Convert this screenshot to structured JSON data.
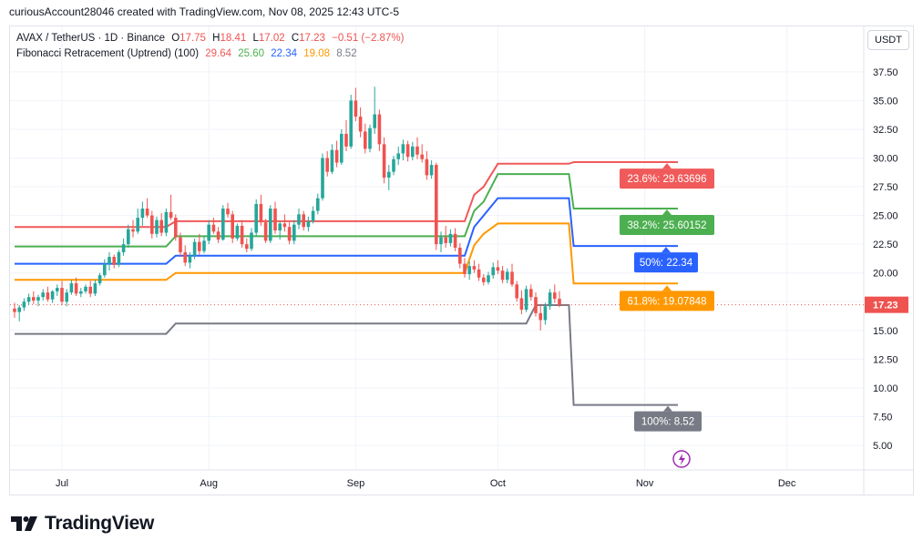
{
  "header": {
    "caption": "curiousAccount28046 created with TradingView.com, Nov 08, 2025 12:43 UTC-5"
  },
  "legend": {
    "symbol": "AVAX / TetherUS · 1D · Binance",
    "o_label": "O",
    "o_value": "17.75",
    "h_label": "H",
    "h_value": "18.41",
    "l_label": "L",
    "l_value": "17.02",
    "c_label": "C",
    "c_value": "17.23",
    "change": "−0.51 (−2.87%)",
    "indicator": "Fibonacci Retracement (Uptrend) (100)",
    "fib_values": [
      "29.64",
      "25.60",
      "22.34",
      "19.08",
      "8.52"
    ]
  },
  "currency": "USDT",
  "brand": {
    "name": "TradingView"
  },
  "colors": {
    "up": "#26a69a",
    "down": "#ef5350",
    "fib_236": "#f05a5a",
    "fib_382": "#4caf50",
    "fib_50": "#2962ff",
    "fib_618": "#ff9800",
    "fib_100": "#787b86",
    "grid": "#f0f3fa",
    "price_line": "#ef5350"
  },
  "chart_data": {
    "type": "candlestick",
    "symbol": "AVAX / TetherUS",
    "interval": "1D",
    "exchange": "Binance",
    "ylim": [
      2.5,
      40
    ],
    "y_ticks": [
      5,
      7.5,
      10,
      12.5,
      15,
      17.5,
      20,
      22.5,
      25,
      27.5,
      30,
      32.5,
      35,
      37.5
    ],
    "y_tick_labels": [
      "5.00",
      "7.50",
      "10.00",
      "12.50",
      "15.00",
      "17.50",
      "20.00",
      "22.50",
      "25.00",
      "27.50",
      "30.00",
      "32.50",
      "35.00",
      "37.50"
    ],
    "x_ticks": [
      {
        "label": "Jul",
        "day": 0
      },
      {
        "label": "Aug",
        "day": 31
      },
      {
        "label": "Sep",
        "day": 62
      },
      {
        "label": "Oct",
        "day": 92
      },
      {
        "label": "Nov",
        "day": 123
      },
      {
        "label": "Dec",
        "day": 153
      }
    ],
    "last_price": 17.23,
    "last_price_label": "17.23",
    "candles": [
      [
        16.9,
        17.4,
        16.1,
        16.6
      ],
      [
        16.6,
        17.2,
        15.8,
        17.0
      ],
      [
        17.0,
        17.8,
        16.7,
        17.5
      ],
      [
        17.5,
        18.2,
        17.2,
        17.9
      ],
      [
        17.9,
        18.4,
        17.3,
        17.6
      ],
      [
        17.6,
        18.1,
        17.1,
        17.9
      ],
      [
        17.9,
        18.6,
        17.6,
        18.3
      ],
      [
        18.3,
        18.8,
        17.5,
        17.7
      ],
      [
        17.7,
        18.5,
        17.4,
        18.4
      ],
      [
        18.4,
        19.0,
        18.0,
        18.7
      ],
      [
        18.7,
        19.3,
        17.2,
        17.5
      ],
      [
        17.5,
        18.6,
        17.1,
        18.3
      ],
      [
        18.3,
        19.4,
        18.1,
        19.1
      ],
      [
        19.1,
        19.6,
        18.0,
        18.2
      ],
      [
        18.2,
        18.7,
        17.9,
        18.4
      ],
      [
        18.4,
        19.0,
        18.2,
        18.8
      ],
      [
        18.8,
        19.3,
        17.9,
        18.2
      ],
      [
        18.2,
        19.4,
        18.0,
        19.1
      ],
      [
        19.1,
        20.0,
        18.9,
        19.8
      ],
      [
        19.8,
        21.2,
        19.6,
        20.8
      ],
      [
        20.8,
        21.8,
        20.2,
        21.4
      ],
      [
        21.4,
        21.6,
        20.4,
        20.7
      ],
      [
        20.7,
        22.0,
        20.5,
        21.8
      ],
      [
        21.8,
        23.0,
        21.5,
        22.5
      ],
      [
        22.5,
        24.2,
        22.2,
        23.8
      ],
      [
        23.8,
        24.6,
        23.1,
        23.6
      ],
      [
        23.6,
        25.6,
        23.4,
        24.8
      ],
      [
        24.8,
        26.2,
        24.1,
        25.6
      ],
      [
        25.6,
        26.5,
        24.8,
        25.0
      ],
      [
        25.0,
        25.4,
        23.0,
        23.4
      ],
      [
        23.4,
        24.9,
        23.1,
        24.6
      ],
      [
        24.6,
        25.2,
        23.2,
        23.5
      ],
      [
        23.5,
        25.6,
        23.2,
        25.3
      ],
      [
        25.3,
        26.8,
        24.6,
        24.8
      ],
      [
        24.8,
        25.1,
        22.8,
        23.1
      ],
      [
        23.1,
        23.5,
        21.4,
        21.8
      ],
      [
        21.8,
        22.4,
        20.6,
        20.9
      ],
      [
        20.9,
        21.8,
        20.4,
        21.5
      ],
      [
        21.5,
        23.0,
        21.2,
        22.7
      ],
      [
        22.7,
        23.4,
        21.6,
        21.9
      ],
      [
        21.9,
        23.2,
        21.7,
        22.8
      ],
      [
        22.8,
        24.6,
        22.5,
        24.2
      ],
      [
        24.2,
        24.8,
        23.4,
        23.6
      ],
      [
        23.6,
        24.0,
        22.6,
        22.9
      ],
      [
        22.9,
        25.9,
        22.8,
        25.6
      ],
      [
        25.6,
        26.1,
        24.8,
        25.1
      ],
      [
        25.1,
        25.4,
        22.6,
        23.0
      ],
      [
        23.0,
        24.3,
        22.8,
        24.1
      ],
      [
        24.1,
        24.6,
        22.2,
        22.5
      ],
      [
        22.5,
        23.0,
        21.8,
        22.1
      ],
      [
        22.1,
        23.9,
        21.9,
        23.5
      ],
      [
        23.5,
        26.4,
        23.2,
        26.0
      ],
      [
        26.0,
        26.8,
        24.1,
        24.4
      ],
      [
        24.4,
        24.7,
        22.6,
        22.8
      ],
      [
        22.8,
        25.9,
        22.6,
        25.6
      ],
      [
        25.6,
        26.2,
        23.4,
        23.7
      ],
      [
        23.7,
        24.5,
        22.9,
        24.3
      ],
      [
        24.3,
        25.1,
        23.6,
        24.0
      ],
      [
        24.0,
        24.4,
        22.5,
        22.8
      ],
      [
        22.8,
        24.6,
        22.5,
        24.2
      ],
      [
        24.2,
        25.6,
        23.8,
        25.1
      ],
      [
        25.1,
        25.4,
        23.7,
        24.0
      ],
      [
        24.0,
        24.9,
        23.6,
        24.5
      ],
      [
        24.5,
        25.8,
        24.3,
        25.4
      ],
      [
        25.4,
        26.9,
        25.1,
        26.5
      ],
      [
        26.5,
        30.4,
        26.3,
        30.0
      ],
      [
        30.0,
        30.6,
        28.4,
        28.8
      ],
      [
        28.8,
        31.2,
        28.6,
        30.7
      ],
      [
        30.7,
        31.5,
        29.2,
        29.6
      ],
      [
        29.6,
        32.5,
        29.4,
        32.1
      ],
      [
        32.1,
        33.3,
        30.6,
        31.0
      ],
      [
        31.0,
        35.5,
        30.8,
        35.0
      ],
      [
        35.0,
        36.1,
        33.2,
        33.6
      ],
      [
        33.6,
        34.4,
        31.8,
        32.3
      ],
      [
        32.3,
        33.0,
        30.4,
        30.8
      ],
      [
        30.8,
        32.9,
        30.5,
        32.6
      ],
      [
        32.6,
        36.2,
        32.1,
        33.8
      ],
      [
        33.8,
        34.2,
        30.6,
        31.2
      ],
      [
        31.2,
        31.8,
        27.8,
        28.3
      ],
      [
        28.3,
        29.4,
        27.2,
        28.8
      ],
      [
        28.8,
        30.2,
        28.5,
        29.9
      ],
      [
        29.9,
        31.0,
        29.4,
        30.4
      ],
      [
        30.4,
        31.6,
        29.8,
        31.2
      ],
      [
        31.2,
        31.5,
        29.7,
        30.1
      ],
      [
        30.1,
        31.4,
        29.8,
        31.0
      ],
      [
        31.0,
        31.8,
        29.9,
        30.3
      ],
      [
        30.3,
        31.2,
        29.6,
        29.9
      ],
      [
        29.9,
        30.6,
        28.1,
        28.5
      ],
      [
        28.5,
        29.8,
        28.2,
        29.4
      ],
      [
        29.4,
        29.6,
        22.0,
        22.5
      ],
      [
        22.5,
        23.6,
        21.8,
        23.1
      ],
      [
        23.1,
        24.1,
        22.2,
        22.6
      ],
      [
        22.6,
        23.8,
        22.3,
        23.4
      ],
      [
        23.4,
        23.9,
        21.9,
        22.2
      ],
      [
        22.2,
        22.6,
        20.4,
        20.8
      ],
      [
        20.8,
        21.3,
        19.6,
        19.9
      ],
      [
        19.9,
        21.0,
        19.4,
        20.6
      ],
      [
        20.6,
        21.1,
        20.0,
        20.3
      ],
      [
        20.3,
        20.8,
        19.3,
        19.6
      ],
      [
        19.6,
        19.9,
        18.9,
        19.2
      ],
      [
        19.2,
        20.1,
        19.0,
        19.8
      ],
      [
        19.8,
        20.9,
        19.5,
        20.5
      ],
      [
        20.5,
        21.1,
        19.9,
        20.2
      ],
      [
        20.2,
        20.6,
        19.1,
        19.4
      ],
      [
        19.4,
        20.4,
        19.1,
        20.1
      ],
      [
        20.1,
        20.8,
        18.8,
        19.0
      ],
      [
        19.0,
        19.3,
        17.5,
        17.8
      ],
      [
        17.8,
        18.5,
        16.4,
        16.8
      ],
      [
        16.8,
        18.9,
        16.6,
        18.6
      ],
      [
        18.6,
        19.0,
        17.6,
        17.9
      ],
      [
        17.9,
        18.3,
        16.2,
        16.5
      ],
      [
        16.5,
        17.2,
        15.0,
        15.9
      ],
      [
        15.9,
        17.4,
        15.5,
        17.1
      ],
      [
        17.1,
        18.6,
        16.8,
        18.3
      ],
      [
        18.3,
        19.0,
        17.4,
        17.75
      ],
      [
        17.75,
        18.41,
        17.02,
        17.23
      ]
    ],
    "candles_start_day": -10,
    "fib_levels": [
      {
        "name": "23.6%",
        "label": "23.6%: 29.63696",
        "final": 29.63696,
        "steps": [
          [
            -10,
            24.0
          ],
          [
            22,
            24.0
          ],
          [
            24,
            24.5
          ],
          [
            85,
            24.5
          ],
          [
            87,
            26.8
          ],
          [
            89,
            27.5
          ],
          [
            92,
            29.5
          ],
          [
            107,
            29.5
          ],
          [
            108,
            29.64
          ],
          [
            130,
            29.64
          ]
        ]
      },
      {
        "name": "38.2%",
        "label": "38.2%: 25.60152",
        "final": 25.60152,
        "steps": [
          [
            -10,
            22.3
          ],
          [
            22,
            22.3
          ],
          [
            24,
            23.2
          ],
          [
            85,
            23.2
          ],
          [
            87,
            25.4
          ],
          [
            89,
            26.2
          ],
          [
            92,
            28.6
          ],
          [
            107,
            28.6
          ],
          [
            108,
            25.6
          ],
          [
            130,
            25.6
          ]
        ]
      },
      {
        "name": "50%",
        "label": "50%: 22.34",
        "final": 22.34,
        "steps": [
          [
            -10,
            20.8
          ],
          [
            22,
            20.8
          ],
          [
            24,
            21.5
          ],
          [
            85,
            21.5
          ],
          [
            87,
            24.0
          ],
          [
            89,
            25.0
          ],
          [
            92,
            26.5
          ],
          [
            107,
            26.5
          ],
          [
            108,
            22.34
          ],
          [
            130,
            22.34
          ]
        ]
      },
      {
        "name": "61.8%",
        "label": "61.8%: 19.07848",
        "final": 19.07848,
        "steps": [
          [
            -10,
            19.4
          ],
          [
            22,
            19.4
          ],
          [
            24,
            20.0
          ],
          [
            85,
            20.0
          ],
          [
            87,
            22.4
          ],
          [
            89,
            23.4
          ],
          [
            92,
            24.3
          ],
          [
            107,
            24.3
          ],
          [
            108,
            19.08
          ],
          [
            130,
            19.08
          ]
        ]
      },
      {
        "name": "100%",
        "label": "100%: 8.52",
        "final": 8.52,
        "steps": [
          [
            -10,
            14.7
          ],
          [
            22,
            14.7
          ],
          [
            24,
            15.6
          ],
          [
            98,
            15.6
          ],
          [
            100,
            17.2
          ],
          [
            107,
            17.2
          ],
          [
            108,
            8.52
          ],
          [
            130,
            8.52
          ]
        ]
      }
    ]
  }
}
